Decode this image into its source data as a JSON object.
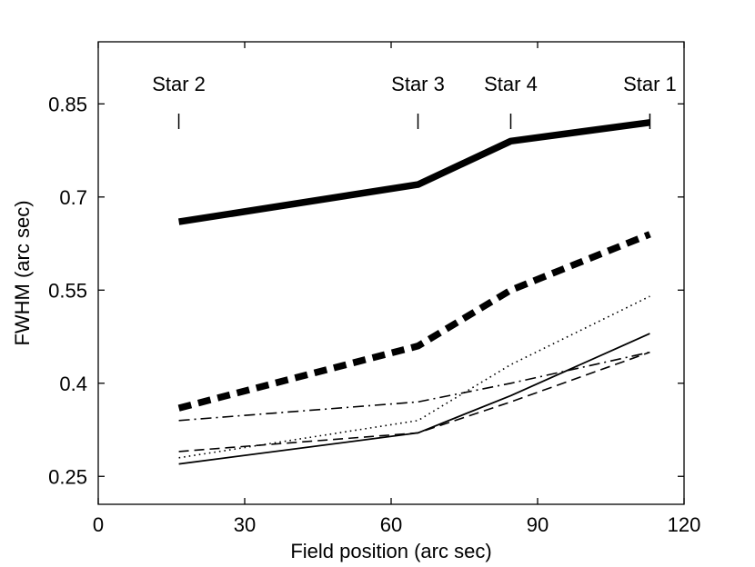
{
  "chart_data": {
    "type": "line",
    "title": "",
    "xlabel": "Field position (arc sec)",
    "ylabel": "FWHM (arc sec)",
    "xlim": [
      0,
      120
    ],
    "ylim": [
      0.205,
      0.95
    ],
    "xticks": [
      0,
      30,
      60,
      90,
      120
    ],
    "xtick_labels": [
      "0",
      "30",
      "60",
      "90",
      "120"
    ],
    "yticks": [
      0.25,
      0.4,
      0.55,
      0.7,
      0.85
    ],
    "ytick_labels": [
      "0.25",
      "0.4",
      "0.55",
      "0.7",
      "0.85"
    ],
    "grid": false,
    "star_markers": [
      {
        "label": "Star 2",
        "x": 16.5
      },
      {
        "label": "Star 3",
        "x": 65.5
      },
      {
        "label": "Star 4",
        "x": 84.5
      },
      {
        "label": "Star 1",
        "x": 113
      }
    ],
    "series": [
      {
        "name": "thick-solid",
        "style": "thick solid",
        "x": [
          16.5,
          65.5,
          84.5,
          113
        ],
        "y": [
          0.66,
          0.72,
          0.79,
          0.82
        ]
      },
      {
        "name": "thick-dashed",
        "style": "thick dashed",
        "x": [
          16.5,
          65.5,
          84.5,
          113
        ],
        "y": [
          0.36,
          0.46,
          0.55,
          0.64
        ]
      },
      {
        "name": "dotted",
        "style": "dotted",
        "x": [
          16.5,
          65.5,
          84.5,
          113
        ],
        "y": [
          0.28,
          0.34,
          0.43,
          0.54
        ]
      },
      {
        "name": "dash-dot",
        "style": "dash-dot",
        "x": [
          16.5,
          65.5,
          84.5,
          113
        ],
        "y": [
          0.34,
          0.37,
          0.4,
          0.45
        ]
      },
      {
        "name": "thin-solid",
        "style": "thin solid",
        "x": [
          16.5,
          65.5,
          84.5,
          113
        ],
        "y": [
          0.27,
          0.32,
          0.38,
          0.48
        ]
      },
      {
        "name": "thin-dashed",
        "style": "thin dashed",
        "x": [
          16.5,
          65.5,
          84.5,
          113
        ],
        "y": [
          0.29,
          0.32,
          0.37,
          0.45
        ]
      }
    ]
  }
}
